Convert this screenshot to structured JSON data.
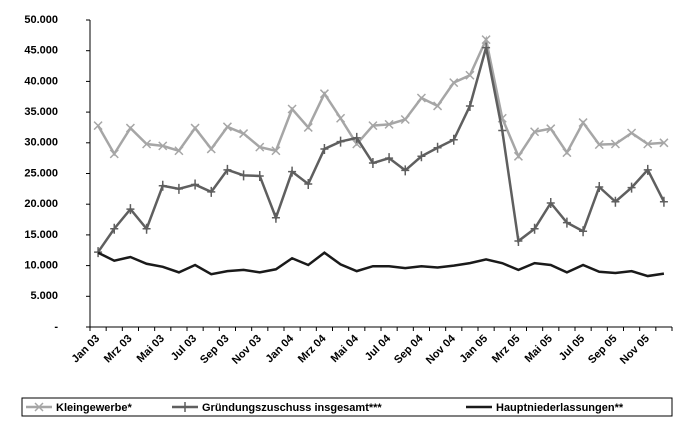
{
  "chart_data": {
    "type": "line",
    "categories": [
      "Jan 03",
      null,
      "Mrz 03",
      null,
      "Mai 03",
      null,
      "Jul 03",
      null,
      "Sep 03",
      null,
      "Nov 03",
      null,
      "Jan 04",
      null,
      "Mrz 04",
      null,
      "Mai 04",
      null,
      "Jul 04",
      null,
      "Sep 04",
      null,
      "Nov 04",
      null,
      "Jan 05",
      null,
      "Mrz 05",
      null,
      "Mai 05",
      null,
      "Jul 05",
      null,
      "Sep 05",
      null,
      "Nov 05",
      null
    ],
    "series": [
      {
        "name": "Kleingewerbe*",
        "color": "#a6a6a6",
        "marker": "x",
        "values": [
          32800,
          28200,
          32400,
          29800,
          29500,
          28700,
          32400,
          29000,
          32600,
          31500,
          29300,
          28700,
          35500,
          32500,
          38000,
          34000,
          29800,
          32800,
          33000,
          33800,
          37300,
          36000,
          39800,
          41000,
          46800,
          34000,
          27800,
          31800,
          32300,
          28400,
          33300,
          29700,
          29800,
          31600,
          29800,
          30000
        ]
      },
      {
        "name": "Gründungszuschuss insgesamt***",
        "color": "#5f5f5f",
        "marker": "+",
        "values": [
          12200,
          16000,
          19200,
          16000,
          23000,
          22500,
          23200,
          22000,
          25600,
          24700,
          24600,
          17800,
          25300,
          23300,
          29000,
          30200,
          30800,
          26700,
          27500,
          25500,
          27800,
          29200,
          30500,
          36000,
          45500,
          32000,
          14000,
          16000,
          20200,
          17000,
          15600,
          22800,
          20400,
          22700,
          25600,
          20400
        ]
      },
      {
        "name": "Hauptniederlassungen**",
        "color": "#1a1a1a",
        "marker": "none",
        "values": [
          12100,
          10800,
          11400,
          10300,
          9800,
          8900,
          10100,
          8600,
          9100,
          9300,
          8900,
          9400,
          11200,
          10100,
          12100,
          10200,
          9100,
          9900,
          9900,
          9600,
          9900,
          9700,
          10000,
          10400,
          11000,
          10400,
          9300,
          10400,
          10100,
          8900,
          10100,
          9000,
          8800,
          9100,
          8300,
          8700
        ]
      }
    ],
    "ylim": [
      0,
      50000
    ],
    "yticks": [
      {
        "value": 0,
        "label": "-"
      },
      {
        "value": 5000,
        "label": "5.000"
      },
      {
        "value": 10000,
        "label": "10.000"
      },
      {
        "value": 15000,
        "label": "15.000"
      },
      {
        "value": 20000,
        "label": "20.000"
      },
      {
        "value": 25000,
        "label": "25.000"
      },
      {
        "value": 30000,
        "label": "30.000"
      },
      {
        "value": 35000,
        "label": "35.000"
      },
      {
        "value": 40000,
        "label": "40.000"
      },
      {
        "value": 45000,
        "label": "45.000"
      },
      {
        "value": 50000,
        "label": "50.000"
      }
    ],
    "grid": false,
    "legend": "bottom"
  }
}
